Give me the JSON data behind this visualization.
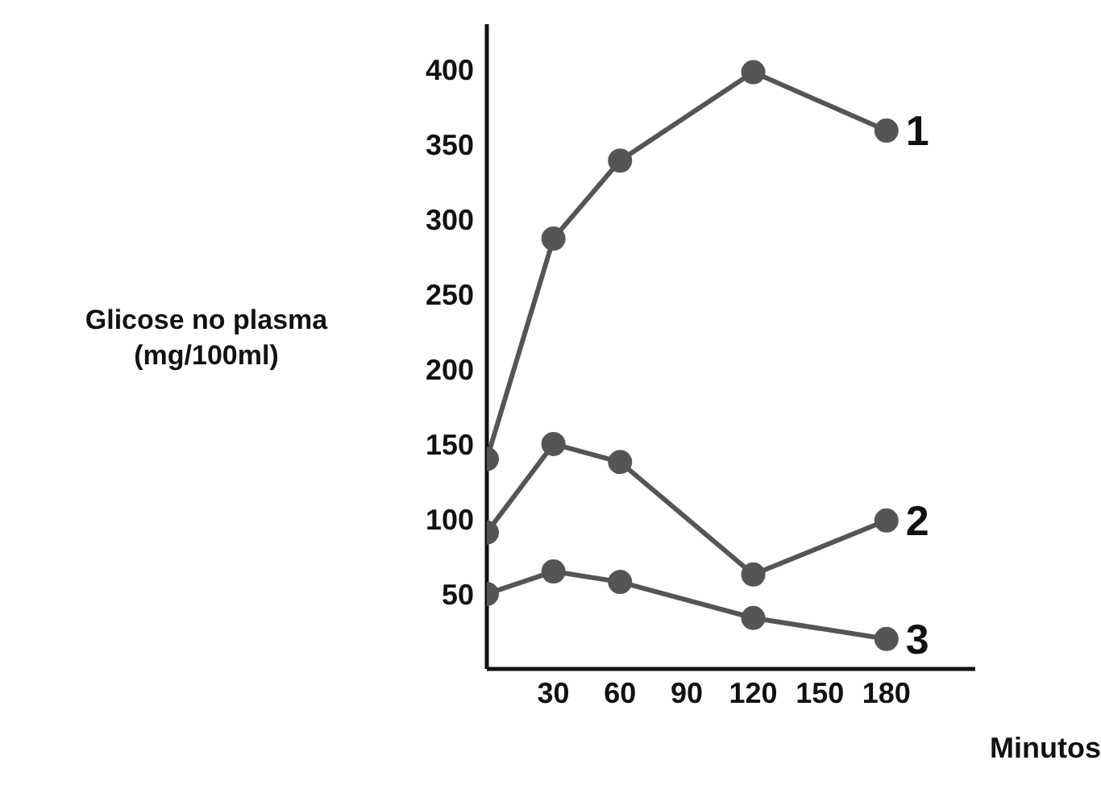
{
  "chart_data": {
    "type": "line",
    "xlabel": "Minutos",
    "ylabel": "Glicose no plasma\n(mg/100ml)",
    "x": [
      0,
      30,
      60,
      120,
      180
    ],
    "xlim": [
      0,
      220
    ],
    "xticks": [
      30,
      60,
      90,
      120,
      150,
      180
    ],
    "ylim": [
      0,
      430
    ],
    "yticks": [
      50,
      100,
      150,
      200,
      250,
      300,
      350,
      400
    ],
    "series": [
      {
        "name": "1",
        "color": "#555555",
        "values": [
          140,
          287,
          339,
          398,
          359
        ]
      },
      {
        "name": "2",
        "color": "#555555",
        "values": [
          91,
          150,
          138,
          63,
          99
        ]
      },
      {
        "name": "3",
        "color": "#555555",
        "values": [
          50,
          65,
          58,
          34,
          20
        ]
      }
    ],
    "marker": "circle",
    "line_style": "solid",
    "grid": false,
    "legend": false
  }
}
